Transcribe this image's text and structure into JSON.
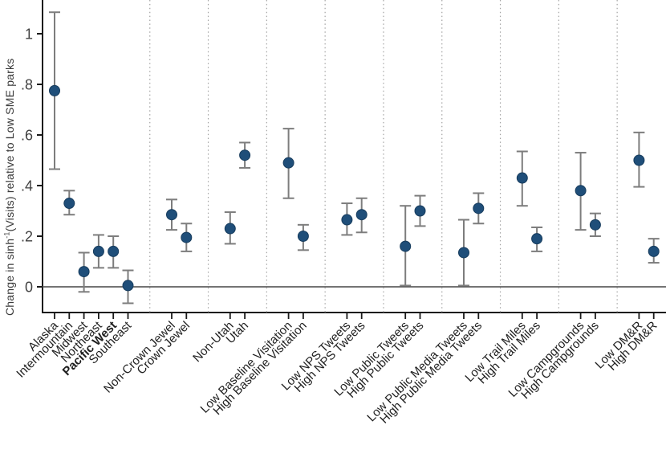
{
  "figure": {
    "ylabel_prefix": "Change in sinh",
    "ylabel_superscript": "-1",
    "ylabel_suffix": "(Visits) relative to Low SME parks"
  },
  "chart_data": {
    "type": "scatter",
    "subtype": "coefficient plot with confidence interval whiskers",
    "title": "",
    "xlabel": "",
    "ylabel": "Change in sinh-1(Visits) relative to Low SME parks",
    "ylim": [
      -0.1,
      1.13
    ],
    "yticks": [
      0,
      0.2,
      0.4,
      0.6,
      0.8,
      1
    ],
    "ytick_labels": [
      "0",
      ".2",
      ".4",
      ".6",
      ".8",
      "1"
    ],
    "reference_line_y": 0,
    "grid": false,
    "legend_position": "none",
    "x_labels_rotated_degrees": 45,
    "colors": {
      "marker": "#1f4e79",
      "marker_edge": "#173c5d",
      "ci": "#7d7d7d",
      "axis": "#1a1a1a",
      "zero_line": "#474747",
      "separator": "#a3a3a3",
      "tick_text": "#404040",
      "label_text": "#1f1f1f"
    },
    "groups": [
      {
        "points": [
          {
            "label": "Alaska",
            "est": 0.775,
            "ci_low": 0.465,
            "ci_high": 1.085
          },
          {
            "label": "Intermountain",
            "est": 0.33,
            "ci_low": 0.285,
            "ci_high": 0.38
          },
          {
            "label": "Midwest",
            "est": 0.06,
            "ci_low": -0.02,
            "ci_high": 0.135
          },
          {
            "label": "Northeast",
            "est": 0.14,
            "ci_low": 0.075,
            "ci_high": 0.205
          },
          {
            "label": "Pacific West",
            "est": 0.14,
            "ci_low": 0.075,
            "ci_high": 0.2,
            "bold": true
          },
          {
            "label": "Southeast",
            "est": 0.005,
            "ci_low": -0.065,
            "ci_high": 0.065
          }
        ]
      },
      {
        "points": [
          {
            "label": "Non-Crown Jewel",
            "est": 0.285,
            "ci_low": 0.225,
            "ci_high": 0.345
          },
          {
            "label": "Crown Jewel",
            "est": 0.195,
            "ci_low": 0.14,
            "ci_high": 0.25
          }
        ]
      },
      {
        "points": [
          {
            "label": "Non-Utah",
            "est": 0.23,
            "ci_low": 0.17,
            "ci_high": 0.295
          },
          {
            "label": "Utah",
            "est": 0.52,
            "ci_low": 0.47,
            "ci_high": 0.57
          }
        ]
      },
      {
        "points": [
          {
            "label": "Low Baseline Visitation",
            "est": 0.49,
            "ci_low": 0.35,
            "ci_high": 0.625
          },
          {
            "label": "High Baseline Visitation",
            "est": 0.2,
            "ci_low": 0.145,
            "ci_high": 0.245
          }
        ]
      },
      {
        "points": [
          {
            "label": "Low NPS Tweets",
            "est": 0.265,
            "ci_low": 0.205,
            "ci_high": 0.33
          },
          {
            "label": "High NPS Tweets",
            "est": 0.285,
            "ci_low": 0.215,
            "ci_high": 0.35
          }
        ]
      },
      {
        "points": [
          {
            "label": "Low Public Tweets",
            "est": 0.16,
            "ci_low": 0.005,
            "ci_high": 0.32
          },
          {
            "label": "High Public Tweets",
            "est": 0.3,
            "ci_low": 0.24,
            "ci_high": 0.36
          }
        ]
      },
      {
        "points": [
          {
            "label": "Low Public Media Tweets",
            "est": 0.135,
            "ci_low": 0.005,
            "ci_high": 0.265
          },
          {
            "label": "High Public Media Tweets",
            "est": 0.31,
            "ci_low": 0.25,
            "ci_high": 0.37
          }
        ]
      },
      {
        "points": [
          {
            "label": "Low Trail Miles",
            "est": 0.43,
            "ci_low": 0.32,
            "ci_high": 0.535
          },
          {
            "label": "High Trail Miles",
            "est": 0.19,
            "ci_low": 0.14,
            "ci_high": 0.235
          }
        ]
      },
      {
        "points": [
          {
            "label": "Low Campgrounds",
            "est": 0.38,
            "ci_low": 0.225,
            "ci_high": 0.53
          },
          {
            "label": "High Campgrounds",
            "est": 0.245,
            "ci_low": 0.2,
            "ci_high": 0.29
          }
        ]
      },
      {
        "points": [
          {
            "label": "Low DM&R",
            "est": 0.5,
            "ci_low": 0.395,
            "ci_high": 0.61
          },
          {
            "label": "High DM&R",
            "est": 0.14,
            "ci_low": 0.095,
            "ci_high": 0.19
          }
        ]
      }
    ]
  }
}
